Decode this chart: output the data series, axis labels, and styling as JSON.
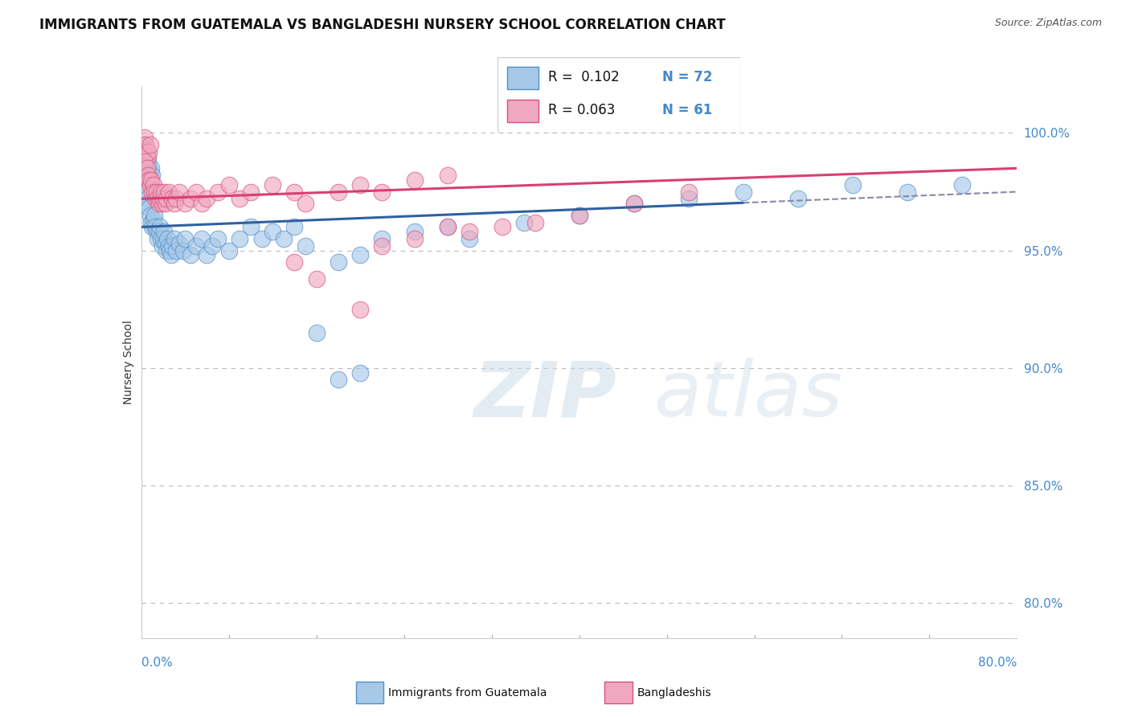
{
  "title": "IMMIGRANTS FROM GUATEMALA VS BANGLADESHI NURSERY SCHOOL CORRELATION CHART",
  "source": "Source: ZipAtlas.com",
  "ylabel": "Nursery School",
  "ytick_values": [
    80.0,
    85.0,
    90.0,
    95.0,
    100.0
  ],
  "xmin": 0.0,
  "xmax": 80.0,
  "ymin": 78.5,
  "ymax": 102.0,
  "blue_color": "#A8C8E8",
  "pink_color": "#F0A8C0",
  "blue_edge_color": "#5090C8",
  "pink_edge_color": "#D85080",
  "blue_line_color": "#3060A0",
  "pink_line_color": "#D84070",
  "blue_line_y0": 96.0,
  "blue_line_y1": 97.5,
  "pink_line_y0": 97.2,
  "pink_line_y1": 98.5,
  "dash_x_start": 55.0,
  "dash_x_end": 80.0,
  "watermark_zip": "ZIP",
  "watermark_atlas": "atlas",
  "blue_scatter": [
    [
      0.3,
      99.5
    ],
    [
      0.4,
      99.2
    ],
    [
      0.5,
      99.0
    ],
    [
      0.6,
      98.8
    ],
    [
      0.7,
      98.5
    ],
    [
      0.8,
      98.3
    ],
    [
      0.9,
      98.5
    ],
    [
      1.0,
      98.2
    ],
    [
      0.3,
      97.8
    ],
    [
      0.4,
      97.5
    ],
    [
      0.5,
      97.2
    ],
    [
      0.6,
      97.0
    ],
    [
      0.7,
      96.8
    ],
    [
      0.8,
      96.5
    ],
    [
      0.9,
      96.2
    ],
    [
      1.0,
      96.0
    ],
    [
      1.1,
      96.3
    ],
    [
      1.2,
      96.5
    ],
    [
      1.3,
      96.0
    ],
    [
      1.4,
      95.8
    ],
    [
      1.5,
      95.5
    ],
    [
      1.6,
      95.8
    ],
    [
      1.7,
      96.0
    ],
    [
      1.8,
      95.5
    ],
    [
      1.9,
      95.2
    ],
    [
      2.0,
      95.5
    ],
    [
      2.1,
      95.8
    ],
    [
      2.2,
      95.3
    ],
    [
      2.3,
      95.0
    ],
    [
      2.4,
      95.5
    ],
    [
      2.5,
      95.2
    ],
    [
      2.6,
      95.0
    ],
    [
      2.7,
      94.8
    ],
    [
      2.8,
      95.2
    ],
    [
      3.0,
      95.5
    ],
    [
      3.2,
      95.0
    ],
    [
      3.5,
      95.3
    ],
    [
      3.8,
      95.0
    ],
    [
      4.0,
      95.5
    ],
    [
      4.5,
      94.8
    ],
    [
      5.0,
      95.2
    ],
    [
      5.5,
      95.5
    ],
    [
      6.0,
      94.8
    ],
    [
      6.5,
      95.2
    ],
    [
      7.0,
      95.5
    ],
    [
      8.0,
      95.0
    ],
    [
      9.0,
      95.5
    ],
    [
      10.0,
      96.0
    ],
    [
      11.0,
      95.5
    ],
    [
      12.0,
      95.8
    ],
    [
      13.0,
      95.5
    ],
    [
      14.0,
      96.0
    ],
    [
      15.0,
      95.2
    ],
    [
      18.0,
      94.5
    ],
    [
      20.0,
      94.8
    ],
    [
      22.0,
      95.5
    ],
    [
      25.0,
      95.8
    ],
    [
      28.0,
      96.0
    ],
    [
      30.0,
      95.5
    ],
    [
      35.0,
      96.2
    ],
    [
      40.0,
      96.5
    ],
    [
      45.0,
      97.0
    ],
    [
      50.0,
      97.2
    ],
    [
      55.0,
      97.5
    ],
    [
      60.0,
      97.2
    ],
    [
      65.0,
      97.8
    ],
    [
      70.0,
      97.5
    ],
    [
      75.0,
      97.8
    ],
    [
      16.0,
      91.5
    ],
    [
      18.0,
      89.5
    ],
    [
      20.0,
      89.8
    ]
  ],
  "pink_scatter": [
    [
      0.3,
      99.8
    ],
    [
      0.4,
      99.5
    ],
    [
      0.5,
      99.2
    ],
    [
      0.6,
      99.0
    ],
    [
      0.7,
      99.2
    ],
    [
      0.8,
      99.5
    ],
    [
      0.3,
      98.8
    ],
    [
      0.5,
      98.5
    ],
    [
      0.6,
      98.2
    ],
    [
      0.7,
      98.0
    ],
    [
      0.8,
      97.8
    ],
    [
      0.9,
      98.0
    ],
    [
      1.0,
      97.5
    ],
    [
      1.1,
      97.8
    ],
    [
      1.2,
      97.5
    ],
    [
      1.3,
      97.2
    ],
    [
      1.4,
      97.5
    ],
    [
      1.5,
      97.2
    ],
    [
      1.6,
      97.0
    ],
    [
      1.7,
      97.2
    ],
    [
      1.8,
      97.5
    ],
    [
      1.9,
      97.0
    ],
    [
      2.0,
      97.2
    ],
    [
      2.1,
      97.5
    ],
    [
      2.2,
      97.0
    ],
    [
      2.3,
      97.2
    ],
    [
      2.5,
      97.5
    ],
    [
      2.8,
      97.2
    ],
    [
      3.0,
      97.0
    ],
    [
      3.2,
      97.2
    ],
    [
      3.5,
      97.5
    ],
    [
      4.0,
      97.0
    ],
    [
      4.5,
      97.2
    ],
    [
      5.0,
      97.5
    ],
    [
      5.5,
      97.0
    ],
    [
      6.0,
      97.2
    ],
    [
      7.0,
      97.5
    ],
    [
      8.0,
      97.8
    ],
    [
      9.0,
      97.2
    ],
    [
      10.0,
      97.5
    ],
    [
      12.0,
      97.8
    ],
    [
      14.0,
      97.5
    ],
    [
      15.0,
      97.0
    ],
    [
      18.0,
      97.5
    ],
    [
      20.0,
      97.8
    ],
    [
      22.0,
      97.5
    ],
    [
      25.0,
      98.0
    ],
    [
      28.0,
      98.2
    ],
    [
      14.0,
      94.5
    ],
    [
      16.0,
      93.8
    ],
    [
      20.0,
      92.5
    ],
    [
      22.0,
      95.2
    ],
    [
      25.0,
      95.5
    ],
    [
      28.0,
      96.0
    ],
    [
      30.0,
      95.8
    ],
    [
      33.0,
      96.0
    ],
    [
      36.0,
      96.2
    ],
    [
      40.0,
      96.5
    ],
    [
      45.0,
      97.0
    ],
    [
      50.0,
      97.5
    ]
  ]
}
